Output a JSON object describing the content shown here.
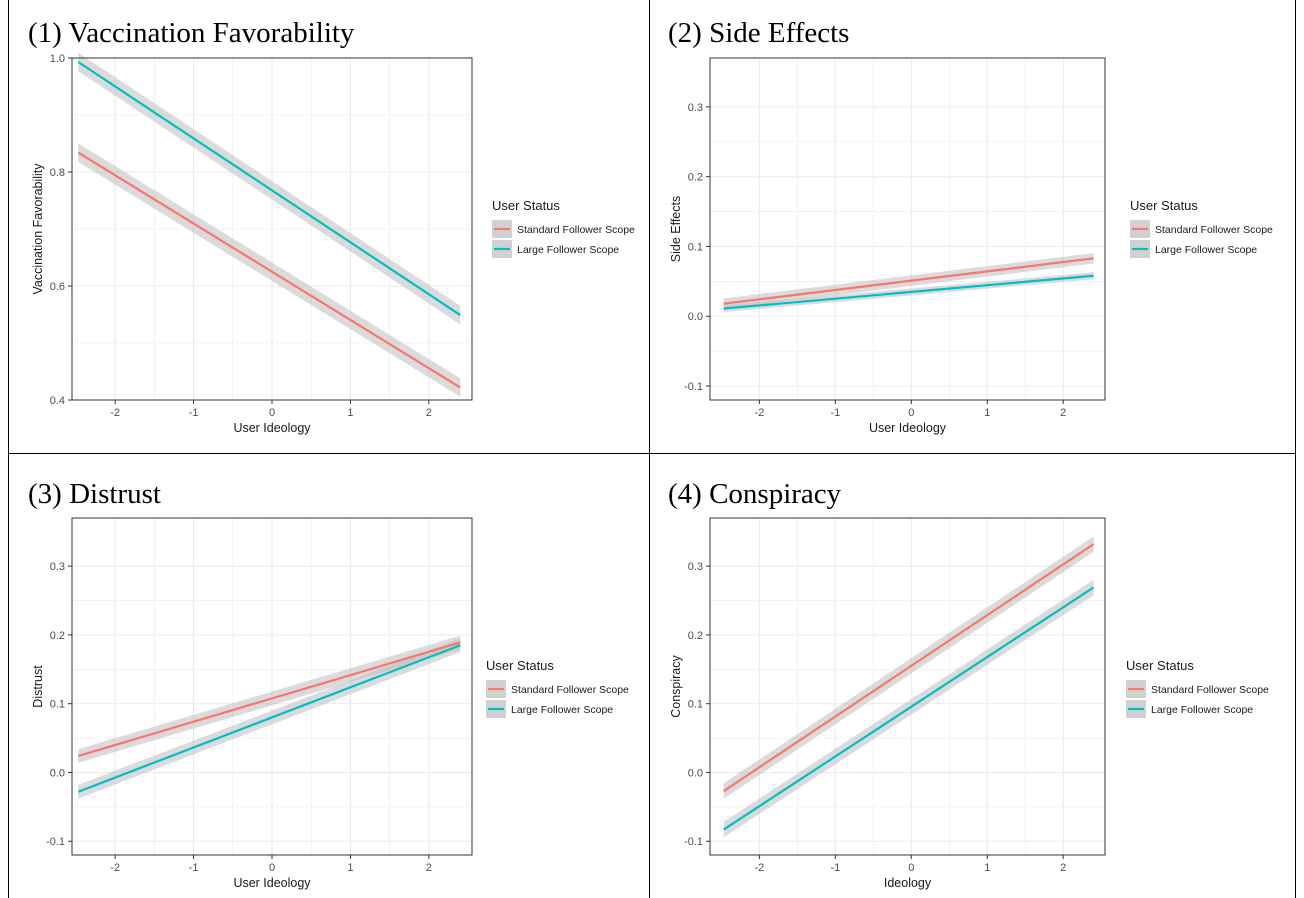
{
  "figure": {
    "colors": {
      "standard": "#F8766D",
      "large": "#00BFC4",
      "band": "#BEBEBE",
      "grid": "#EBEBEB"
    }
  },
  "chart_data": [
    {
      "type": "line",
      "title": "(1) Vaccination Favorability",
      "xlabel": "User Ideology",
      "ylabel": "Vaccination Favorability",
      "xlim": [
        -2.55,
        2.55
      ],
      "ylim": [
        0.4,
        1.0
      ],
      "xticks": [
        -2,
        -1,
        0,
        1,
        2
      ],
      "yticks": [
        0.4,
        0.6,
        0.8,
        1.0
      ],
      "ytick_labels": [
        "0.4",
        "0.6",
        "0.8",
        "1.0"
      ],
      "grid": true,
      "legend": {
        "title": "User Status",
        "position": "right"
      },
      "series": [
        {
          "name": "Standard Follower Scope",
          "x": [
            -2.47,
            2.4
          ],
          "y": [
            0.834,
            0.422
          ],
          "ci_halfwidth": 0.013
        },
        {
          "name": "Large Follower Scope",
          "x": [
            -2.47,
            2.4
          ],
          "y": [
            0.993,
            0.549
          ],
          "ci_halfwidth": 0.013
        }
      ]
    },
    {
      "type": "line",
      "title": "(2) Side Effects",
      "xlabel": "User Ideology",
      "ylabel": "Side Effects",
      "xlim": [
        -2.65,
        2.55
      ],
      "ylim": [
        -0.12,
        0.37
      ],
      "xticks": [
        -2,
        -1,
        0,
        1,
        2
      ],
      "yticks": [
        -0.1,
        0.0,
        0.1,
        0.2,
        0.3
      ],
      "ytick_labels": [
        "-0.1",
        "0.0",
        "0.1",
        "0.2",
        "0.3"
      ],
      "grid": true,
      "legend": {
        "title": "User Status",
        "position": "right"
      },
      "series": [
        {
          "name": "Standard Follower Scope",
          "x": [
            -2.47,
            2.4
          ],
          "y": [
            0.018,
            0.083
          ],
          "ci_halfwidth": 0.006
        },
        {
          "name": "Large Follower Scope",
          "x": [
            -2.47,
            2.4
          ],
          "y": [
            0.011,
            0.058
          ],
          "ci_halfwidth": 0.004
        }
      ]
    },
    {
      "type": "line",
      "title": "(3) Distrust",
      "xlabel": "User Ideology",
      "ylabel": "Distrust",
      "xlim": [
        -2.55,
        2.55
      ],
      "ylim": [
        -0.12,
        0.37
      ],
      "xticks": [
        -2,
        -1,
        0,
        1,
        2
      ],
      "yticks": [
        -0.1,
        0.0,
        0.1,
        0.2,
        0.3
      ],
      "ytick_labels": [
        "-0.1",
        "0.0",
        "0.1",
        "0.2",
        "0.3"
      ],
      "grid": true,
      "legend": {
        "title": "User Status",
        "position": "right"
      },
      "series": [
        {
          "name": "Standard Follower Scope",
          "x": [
            -2.47,
            2.4
          ],
          "y": [
            0.024,
            0.189
          ],
          "ci_halfwidth": 0.008
        },
        {
          "name": "Large Follower Scope",
          "x": [
            -2.47,
            2.4
          ],
          "y": [
            -0.028,
            0.185
          ],
          "ci_halfwidth": 0.008
        }
      ]
    },
    {
      "type": "line",
      "title": "(4) Conspiracy",
      "xlabel": "Ideology",
      "ylabel": "Conspiracy",
      "xlim": [
        -2.65,
        2.55
      ],
      "ylim": [
        -0.12,
        0.37
      ],
      "xticks": [
        -2,
        -1,
        0,
        1,
        2
      ],
      "yticks": [
        -0.1,
        0.0,
        0.1,
        0.2,
        0.3
      ],
      "ytick_labels": [
        "-0.1",
        "0.0",
        "0.1",
        "0.2",
        "0.3"
      ],
      "grid": true,
      "legend": {
        "title": "User Status",
        "position": "right"
      },
      "series": [
        {
          "name": "Standard Follower Scope",
          "x": [
            -2.47,
            2.4
          ],
          "y": [
            -0.027,
            0.332
          ],
          "ci_halfwidth": 0.009
        },
        {
          "name": "Large Follower Scope",
          "x": [
            -2.47,
            2.4
          ],
          "y": [
            -0.083,
            0.269
          ],
          "ci_halfwidth": 0.009
        }
      ]
    }
  ]
}
